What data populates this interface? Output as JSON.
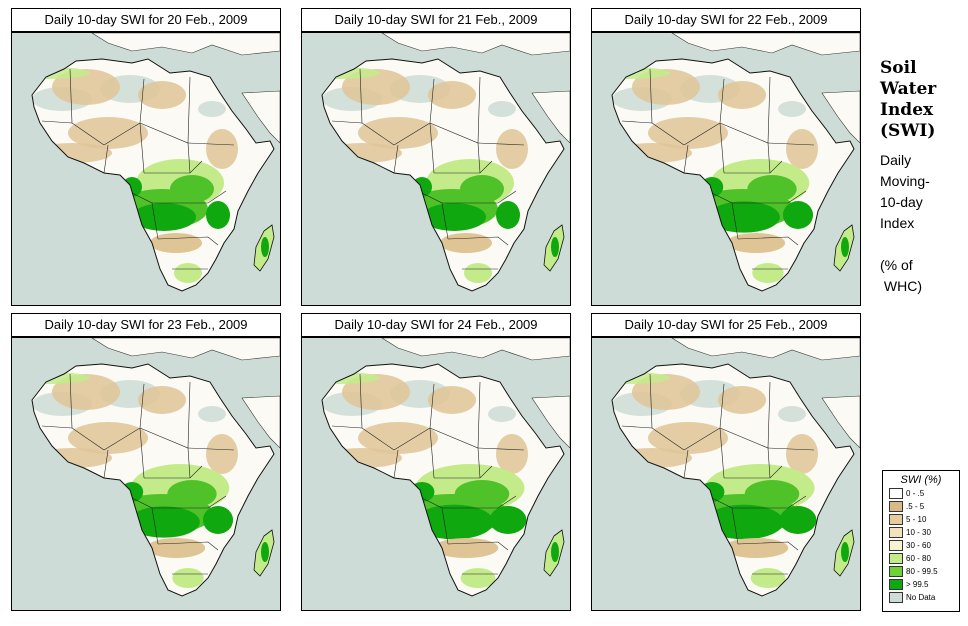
{
  "panels": [
    {
      "title": "Daily 10-day SWI for  20 Feb., 2009",
      "wet_level": 1
    },
    {
      "title": "Daily 10-day SWI for  21 Feb., 2009",
      "wet_level": 1
    },
    {
      "title": "Daily 10-day SWI for  22 Feb., 2009",
      "wet_level": 2
    },
    {
      "title": "Daily 10-day SWI for  23 Feb., 2009",
      "wet_level": 2
    },
    {
      "title": "Daily 10-day SWI for  24 Feb., 2009",
      "wet_level": 3
    },
    {
      "title": "Daily 10-day SWI for  25 Feb., 2009",
      "wet_level": 3
    }
  ],
  "side": {
    "title_lines": [
      "Soil",
      "Water",
      "Index",
      "(SWI)"
    ],
    "sub_lines": [
      "Daily",
      "Moving-",
      "10-day",
      "Index",
      "",
      "(% of",
      " WHC)"
    ]
  },
  "legend": {
    "title": "SWI (%)",
    "items": [
      {
        "label": "0 - .5",
        "color": "#ffffff"
      },
      {
        "label": ".5 - 5",
        "color": "#d9b98a"
      },
      {
        "label": "5 - 10",
        "color": "#e6cb9c"
      },
      {
        "label": "10 - 30",
        "color": "#f3e2bd"
      },
      {
        "label": "30 - 60",
        "color": "#f7f2cf"
      },
      {
        "label": "60 - 80",
        "color": "#c3eb8a"
      },
      {
        "label": "80 - 99.5",
        "color": "#6ed13a"
      },
      {
        "label": "> 99.5",
        "color": "#0fa80f"
      },
      {
        "label": "No Data",
        "color": "#cddcd6"
      }
    ]
  },
  "colors": {
    "ocean": "#cddcd6",
    "land": "#fbfaf4",
    "dry": "#dfc496",
    "moist": "#c3eb8a",
    "wet": "#4fc22a",
    "saturated": "#0fa80f"
  }
}
